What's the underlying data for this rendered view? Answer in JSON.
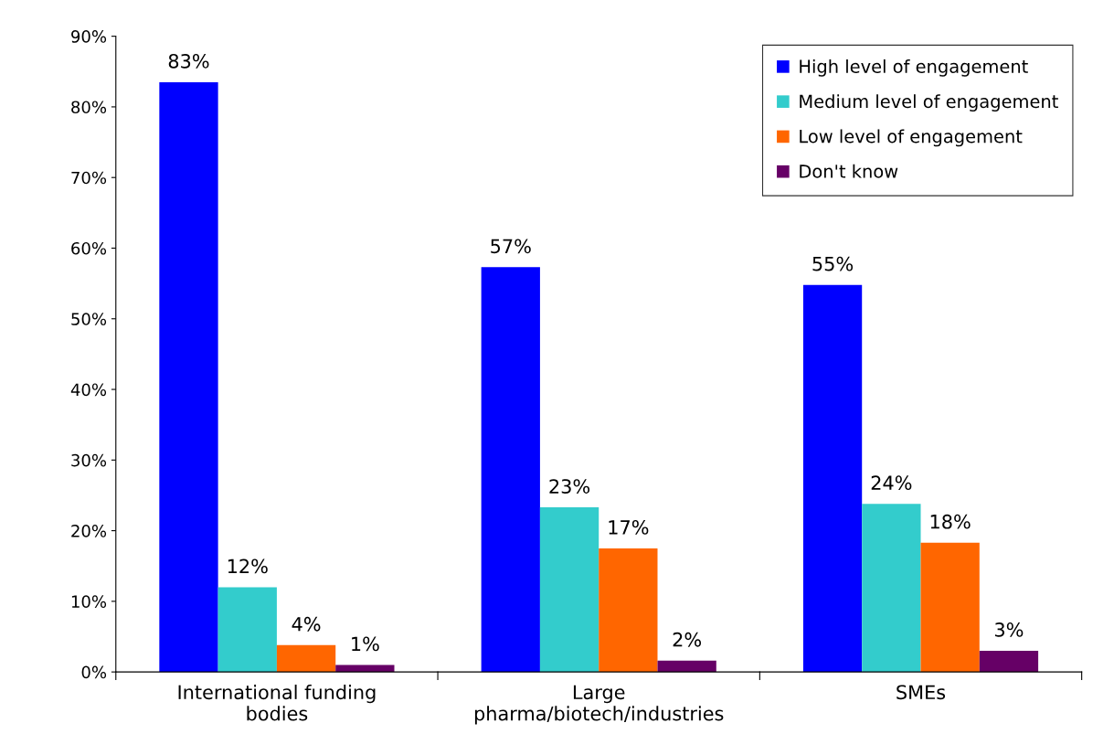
{
  "chart_data": {
    "type": "bar",
    "categories": [
      "International funding\nbodies",
      "Large\npharma/biotech/industries",
      "SMEs"
    ],
    "series": [
      {
        "name": "High level of engagement",
        "color": "#0000ff",
        "values": [
          83.5,
          57.3,
          54.8
        ],
        "value_labels": [
          "83%",
          "57%",
          "55%"
        ]
      },
      {
        "name": "Medium level of engagement",
        "color": "#33cccc",
        "values": [
          12,
          23.3,
          23.8
        ],
        "value_labels": [
          "12%",
          "23%",
          "24%"
        ]
      },
      {
        "name": "Low level of engagement",
        "color": "#ff6600",
        "values": [
          3.8,
          17.5,
          18.3
        ],
        "value_labels": [
          "4%",
          "17%",
          "18%"
        ]
      },
      {
        "name": "Don't know",
        "color": "#660066",
        "values": [
          1,
          1.6,
          3
        ],
        "value_labels": [
          "1%",
          "2%",
          "3%"
        ]
      }
    ],
    "ylim": [
      0,
      90
    ],
    "yticks": [
      {
        "value": 0,
        "label": "0%"
      },
      {
        "value": 10,
        "label": "10%"
      },
      {
        "value": 20,
        "label": "20%"
      },
      {
        "value": 30,
        "label": "30%"
      },
      {
        "value": 40,
        "label": "40%"
      },
      {
        "value": 50,
        "label": "50%"
      },
      {
        "value": 60,
        "label": "60%"
      },
      {
        "value": 70,
        "label": "70%"
      },
      {
        "value": 80,
        "label": "80%"
      },
      {
        "value": 90,
        "label": "90%"
      }
    ],
    "legend": "top right"
  }
}
